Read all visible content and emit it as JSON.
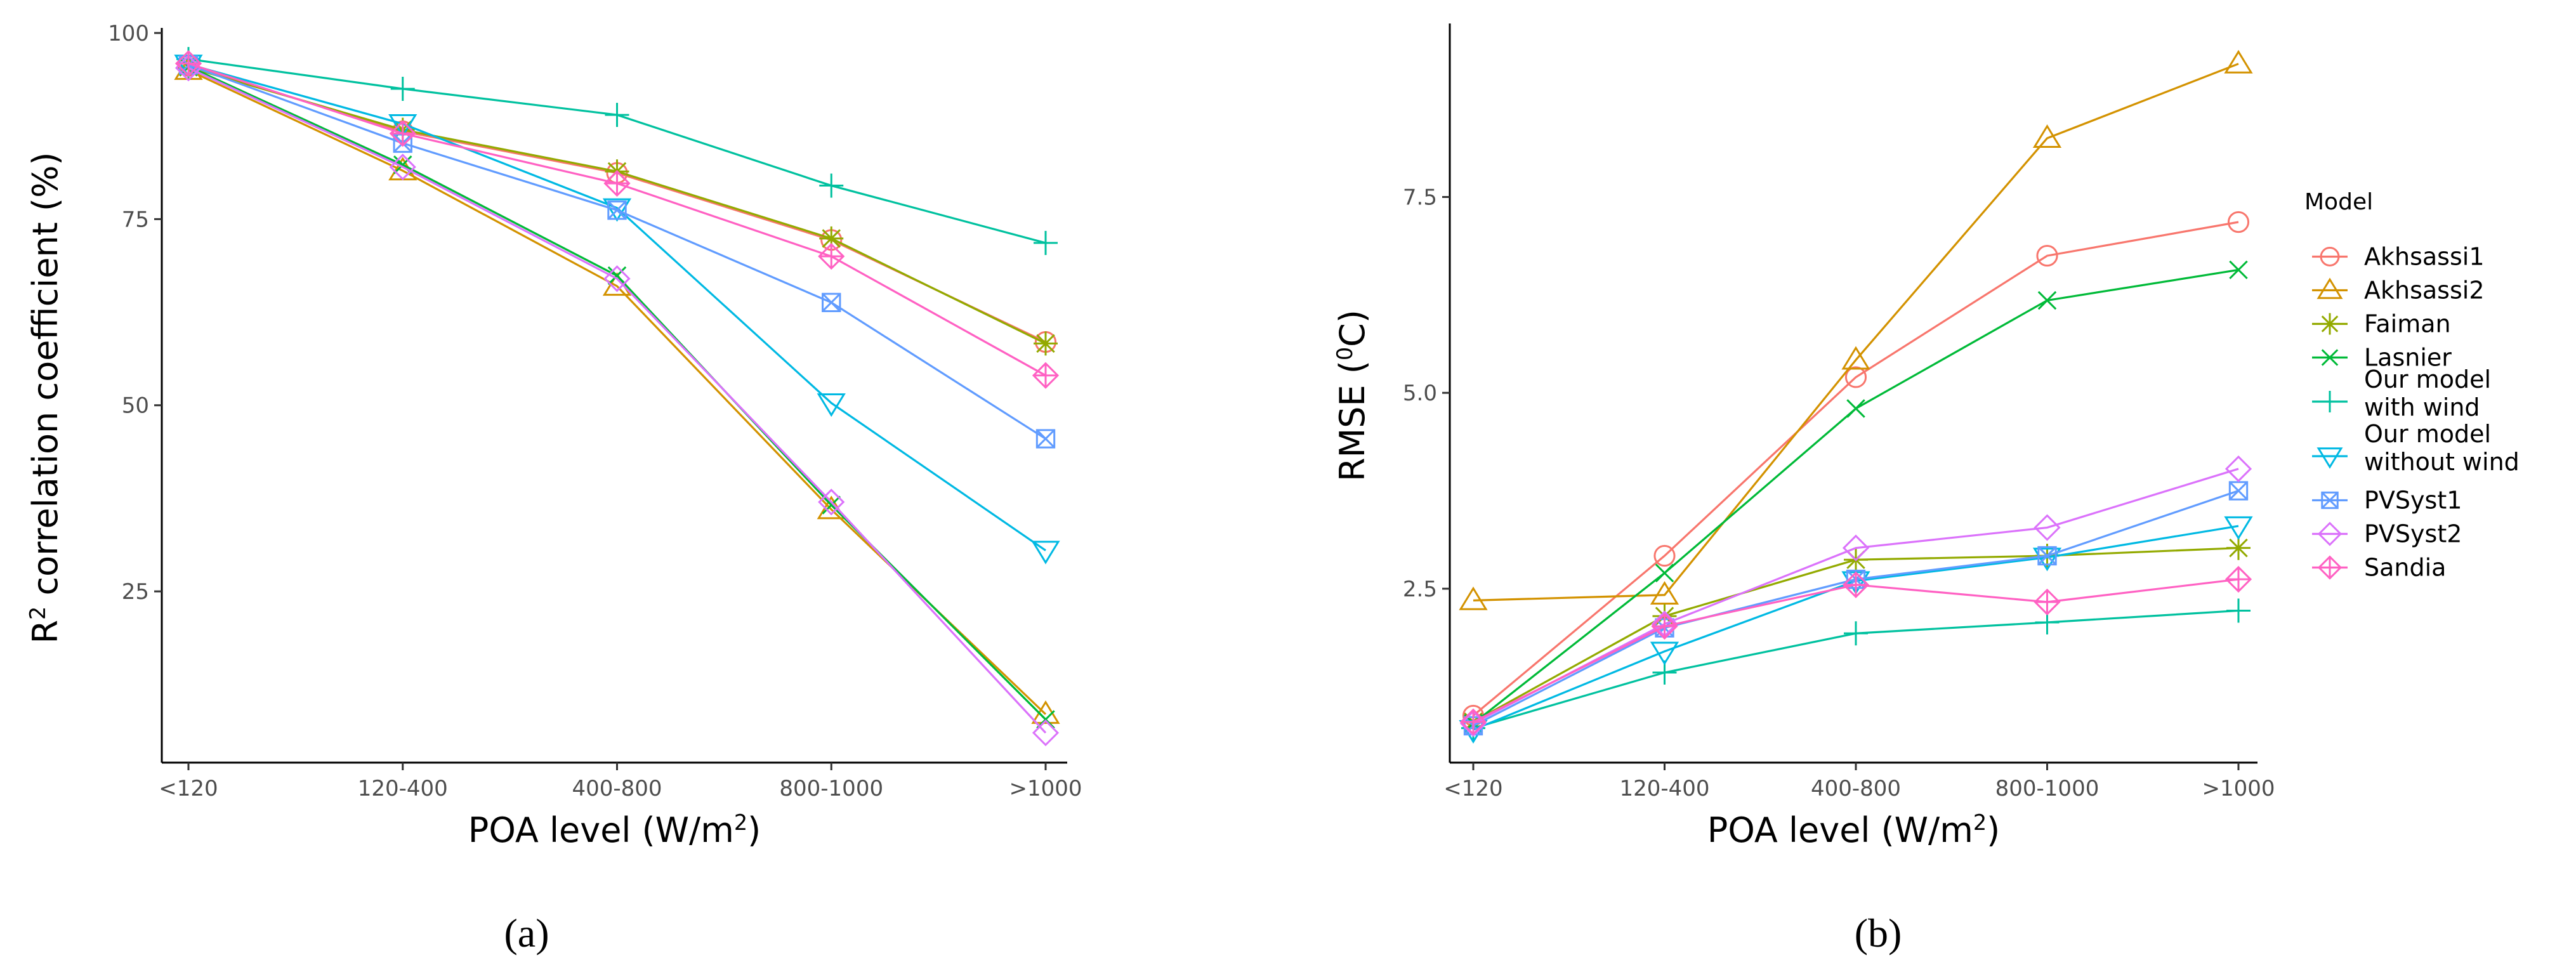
{
  "chart_data": [
    {
      "id": "a",
      "type": "line",
      "panel_label": "a",
      "categories": [
        "<120",
        "120-400",
        "400-800",
        "800-1000",
        ">1000"
      ],
      "ylabel": "R2 correlation coefficient (%)",
      "ylabel_parts": {
        "pre": "R",
        "sup": "2",
        "post": " correlation coefficient (%)"
      },
      "xlabel": "POA level (W/m2)",
      "xlabel_parts": {
        "pre": "POA level (W/m",
        "sup": "2",
        "post": ")"
      },
      "ylim": [
        2,
        100
      ],
      "yticks": [
        25,
        50,
        75,
        100
      ],
      "ytick_labels": [
        "25",
        "50",
        "75",
        "100"
      ],
      "grid": false,
      "series": [
        {
          "name": "Akhsassi1",
          "values": [
            95.6,
            86.8,
            81.2,
            72.2,
            58.5
          ]
        },
        {
          "name": "Akhsassi2",
          "values": [
            95.0,
            81.5,
            66.0,
            36.0,
            8.5
          ]
        },
        {
          "name": "Faiman",
          "values": [
            95.4,
            87.0,
            81.4,
            72.4,
            58.3
          ]
        },
        {
          "name": "Lasnier",
          "values": [
            95.5,
            82.3,
            67.4,
            36.6,
            7.8
          ]
        },
        {
          "name": "Our model with wind",
          "values": [
            96.5,
            92.5,
            89.0,
            79.5,
            71.8
          ]
        },
        {
          "name": "Our model without wind",
          "values": [
            95.8,
            87.8,
            76.5,
            50.3,
            30.5
          ]
        },
        {
          "name": "PVSyst1",
          "values": [
            95.7,
            85.2,
            76.2,
            63.8,
            45.5
          ]
        },
        {
          "name": "PVSyst2",
          "values": [
            95.3,
            82.0,
            67.0,
            37.0,
            6.0
          ]
        },
        {
          "name": "Sandia",
          "values": [
            95.9,
            86.5,
            79.8,
            70.0,
            54.0
          ]
        }
      ]
    },
    {
      "id": "b",
      "type": "line",
      "panel_label": "b",
      "categories": [
        "<120",
        "120-400",
        "400-800",
        "800-1000",
        ">1000"
      ],
      "ylabel": "RMSE (0C)",
      "ylabel_parts": {
        "pre": "RMSE (",
        "sup": "0",
        "post": "C)"
      },
      "xlabel": "POA level (W/m2)",
      "xlabel_parts": {
        "pre": "POA level (W/m",
        "sup": "2",
        "post": ")"
      },
      "ylim": [
        0.28,
        9.65
      ],
      "yticks": [
        2.5,
        5.0,
        7.5
      ],
      "ytick_labels": [
        "2.5",
        "5.0",
        "7.5"
      ],
      "grid": false,
      "series": [
        {
          "name": "Akhsassi1",
          "values": [
            0.88,
            2.92,
            5.2,
            6.75,
            7.18
          ]
        },
        {
          "name": "Akhsassi2",
          "values": [
            2.35,
            2.42,
            5.42,
            8.25,
            9.2
          ]
        },
        {
          "name": "Faiman",
          "values": [
            0.8,
            2.15,
            2.87,
            2.92,
            3.02
          ]
        },
        {
          "name": "Lasnier",
          "values": [
            0.78,
            2.7,
            4.8,
            6.18,
            6.57
          ]
        },
        {
          "name": "Our model with wind",
          "values": [
            0.72,
            1.43,
            1.93,
            2.07,
            2.22
          ]
        },
        {
          "name": "Our model without wind",
          "values": [
            0.7,
            1.7,
            2.6,
            2.9,
            3.3
          ]
        },
        {
          "name": "PVSyst1",
          "values": [
            0.75,
            2.0,
            2.62,
            2.92,
            3.75
          ]
        },
        {
          "name": "PVSyst2",
          "values": [
            0.78,
            2.05,
            3.02,
            3.28,
            4.03
          ]
        },
        {
          "name": "Sandia",
          "values": [
            0.8,
            2.02,
            2.55,
            2.33,
            2.62
          ]
        }
      ]
    }
  ],
  "legend": {
    "title": "Model",
    "placement": "right",
    "items": [
      {
        "name": "Akhsassi1",
        "lines": [
          "Akhsassi1"
        ],
        "color": "#F8766D",
        "shape": "circle"
      },
      {
        "name": "Akhsassi2",
        "lines": [
          "Akhsassi2"
        ],
        "color": "#D39200",
        "shape": "triangle"
      },
      {
        "name": "Faiman",
        "lines": [
          "Faiman"
        ],
        "color": "#93AA00",
        "shape": "star"
      },
      {
        "name": "Lasnier",
        "lines": [
          "Lasnier"
        ],
        "color": "#00BA38",
        "shape": "x"
      },
      {
        "name": "Our model with wind",
        "lines": [
          "Our model",
          "with wind"
        ],
        "color": "#00C19F",
        "shape": "plus"
      },
      {
        "name": "Our model without wind",
        "lines": [
          "Our model",
          "without wind"
        ],
        "color": "#00B9E3",
        "shape": "triangle-down"
      },
      {
        "name": "PVSyst1",
        "lines": [
          "PVSyst1"
        ],
        "color": "#619CFF",
        "shape": "square-x"
      },
      {
        "name": "PVSyst2",
        "lines": [
          "PVSyst2"
        ],
        "color": "#DB72FB",
        "shape": "diamond"
      },
      {
        "name": "Sandia",
        "lines": [
          "Sandia"
        ],
        "color": "#FF61C3",
        "shape": "diamond-plus"
      }
    ]
  }
}
